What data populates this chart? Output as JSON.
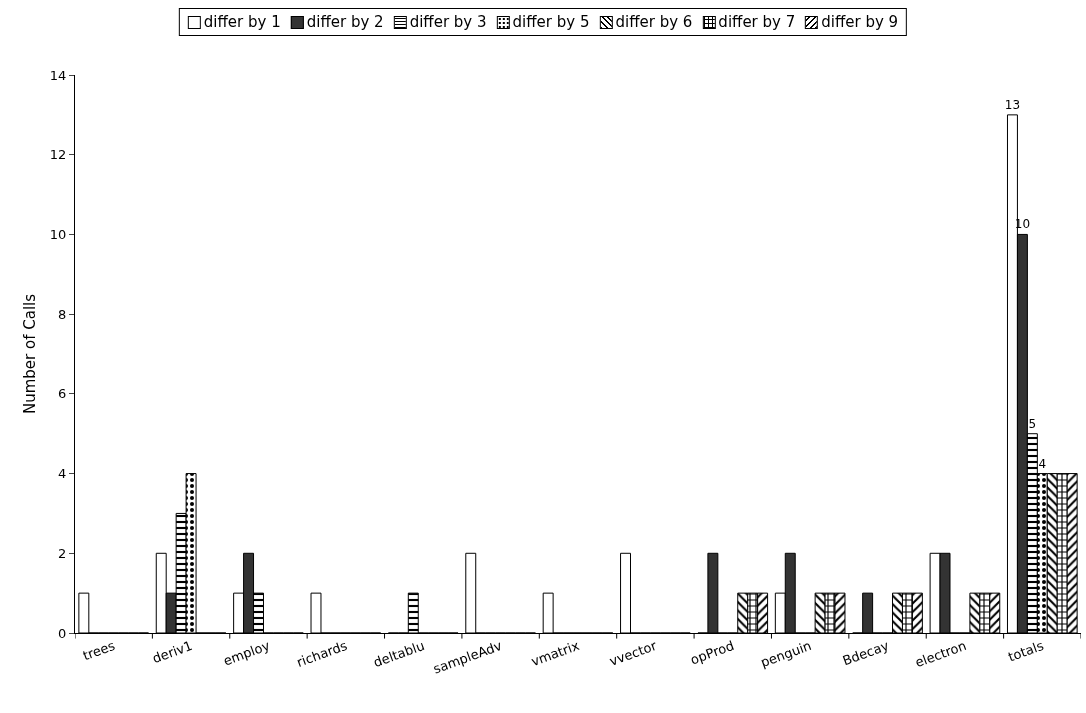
{
  "chart_data": {
    "type": "bar",
    "ylabel": "Number of Calls",
    "categories": [
      "trees",
      "deriv1",
      "employ",
      "richards",
      "deltablu",
      "sampleAdv",
      "vmatrix",
      "vvector",
      "opProd",
      "penguin",
      "Bdecay",
      "electron",
      "totals"
    ],
    "series": [
      {
        "name": "differ by 1",
        "color": "#ffffff",
        "values": [
          1,
          2,
          1,
          1,
          0,
          2,
          1,
          2,
          0,
          1,
          0,
          2,
          13
        ],
        "value_labels": [
          null,
          null,
          null,
          null,
          null,
          null,
          null,
          null,
          null,
          null,
          null,
          null,
          "13"
        ]
      },
      {
        "name": "differ by 2",
        "color": "#333333",
        "values": [
          0,
          1,
          2,
          0,
          0,
          0,
          0,
          0,
          2,
          2,
          1,
          2,
          10
        ],
        "value_labels": [
          null,
          null,
          null,
          null,
          null,
          null,
          null,
          null,
          null,
          null,
          null,
          null,
          "10"
        ]
      },
      {
        "name": "differ by 3",
        "color": "#000000",
        "values": [
          0,
          3,
          1,
          0,
          1,
          0,
          0,
          0,
          0,
          0,
          0,
          0,
          5
        ],
        "value_labels": [
          null,
          null,
          null,
          null,
          null,
          null,
          null,
          null,
          null,
          null,
          null,
          null,
          "5"
        ]
      },
      {
        "name": "differ by 5",
        "color": "#000000",
        "values": [
          0,
          4,
          0,
          0,
          0,
          0,
          0,
          0,
          0,
          0,
          0,
          0,
          4
        ],
        "value_labels": [
          null,
          null,
          null,
          null,
          null,
          null,
          null,
          null,
          null,
          null,
          null,
          null,
          "4"
        ]
      },
      {
        "name": "differ by 6",
        "color": "#000000",
        "values": [
          0,
          0,
          0,
          0,
          0,
          0,
          0,
          0,
          1,
          1,
          1,
          1,
          4
        ]
      },
      {
        "name": "differ by 7",
        "color": "#000000",
        "values": [
          0,
          0,
          0,
          0,
          0,
          0,
          0,
          0,
          1,
          1,
          1,
          1,
          4
        ]
      },
      {
        "name": "differ by 9",
        "color": "#000000",
        "values": [
          0,
          0,
          0,
          0,
          0,
          0,
          0,
          0,
          1,
          1,
          1,
          1,
          4
        ]
      }
    ],
    "ylim": [
      0,
      14
    ],
    "yticks": [
      0,
      2,
      4,
      6,
      8,
      10,
      12,
      14
    ],
    "grid": false,
    "legend": "top"
  }
}
